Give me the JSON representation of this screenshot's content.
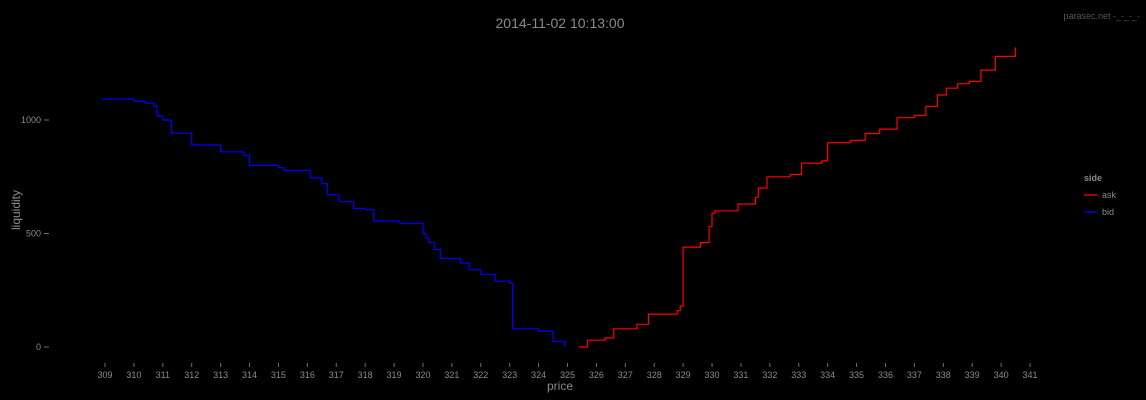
{
  "watermark": "parasec.net -_-_-_-",
  "chart_data": {
    "type": "line",
    "title": "2014-11-02 10:13:00",
    "xlabel": "price",
    "ylabel": "liquidity",
    "xlim": [
      308.2,
      341.5
    ],
    "ylim": [
      -40,
      1390
    ],
    "x_ticks": [
      309,
      310,
      311,
      312,
      313,
      314,
      315,
      316,
      317,
      318,
      319,
      320,
      321,
      322,
      323,
      324,
      325,
      326,
      327,
      328,
      329,
      330,
      331,
      332,
      333,
      334,
      335,
      336,
      337,
      338,
      339,
      340,
      341
    ],
    "y_ticks": [
      0,
      500,
      1000
    ],
    "grid": false,
    "legend": {
      "title": "side",
      "position": "right"
    },
    "series": [
      {
        "name": "bid",
        "color": "#0000ff",
        "step": true,
        "x": [
          308.9,
          310.0,
          310.4,
          310.7,
          310.8,
          311.0,
          311.3,
          312.0,
          313.0,
          313.8,
          314.0,
          315.0,
          315.2,
          316.1,
          316.5,
          316.7,
          317.1,
          317.6,
          318.0,
          318.3,
          319.2,
          320.0,
          320.1,
          320.2,
          320.4,
          320.6,
          321.3,
          321.6,
          322.0,
          322.5,
          323.0,
          323.1,
          324.0,
          324.5,
          324.9
        ],
        "y": [
          1092,
          1082,
          1074,
          1062,
          1018,
          1000,
          942,
          890,
          860,
          845,
          800,
          790,
          778,
          745,
          720,
          670,
          640,
          610,
          605,
          555,
          545,
          500,
          480,
          460,
          430,
          390,
          370,
          340,
          320,
          290,
          280,
          80,
          70,
          25,
          0
        ]
      },
      {
        "name": "ask",
        "color": "#ff0000",
        "step": true,
        "x": [
          325.4,
          325.7,
          326.3,
          326.6,
          327.4,
          327.8,
          328.8,
          328.9,
          329.0,
          329.6,
          329.9,
          330.0,
          330.1,
          330.9,
          331.5,
          331.6,
          331.9,
          332.7,
          333.1,
          333.8,
          334.0,
          334.8,
          335.3,
          335.8,
          336.4,
          337.0,
          337.4,
          337.8,
          338.1,
          338.5,
          338.9,
          339.3,
          339.8,
          340.5
        ],
        "y": [
          0,
          30,
          40,
          80,
          100,
          145,
          160,
          180,
          440,
          460,
          530,
          590,
          600,
          630,
          660,
          700,
          750,
          760,
          810,
          820,
          900,
          910,
          940,
          960,
          1010,
          1020,
          1060,
          1110,
          1140,
          1160,
          1170,
          1220,
          1280,
          1320
        ]
      }
    ]
  }
}
